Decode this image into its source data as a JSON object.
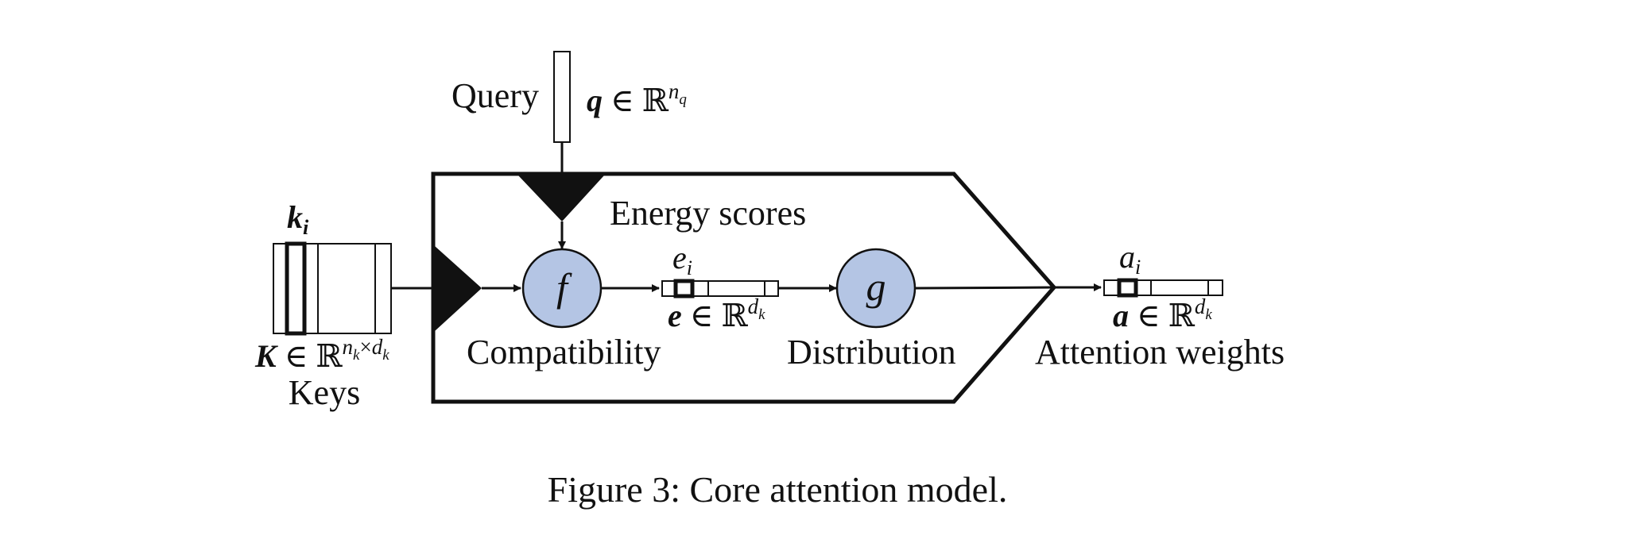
{
  "diagram": {
    "query": {
      "label": "Query",
      "math_var": "q",
      "math_rel": " ∈ ℝ",
      "math_sup": "n",
      "math_sup_sub": "q"
    },
    "keys": {
      "label": "Keys",
      "item_var": "k",
      "item_sub": "i",
      "math_var": "K",
      "math_rel": " ∈ ℝ",
      "math_sup_a": "n",
      "math_sup_a_sub": "k",
      "math_sup_op": "×",
      "math_sup_b": "d",
      "math_sup_b_sub": "k"
    },
    "energy": {
      "label": "Energy scores",
      "item_var": "e",
      "item_sub": "i",
      "math_var": "e",
      "math_rel": " ∈ ℝ",
      "math_sup": "d",
      "math_sup_sub": "k"
    },
    "compatibility": {
      "symbol": "f",
      "label": "Compatibility"
    },
    "distribution": {
      "symbol": "g",
      "label": "Distribution"
    },
    "attention": {
      "label": "Attention weights",
      "item_var": "a",
      "item_sub": "i",
      "math_var": "a",
      "math_rel": " ∈ ℝ",
      "math_sup": "d",
      "math_sup_sub": "k"
    },
    "colors": {
      "node_fill": "#b4c5e4",
      "stroke": "#111111"
    }
  },
  "caption": "Figure 3: Core attention model."
}
